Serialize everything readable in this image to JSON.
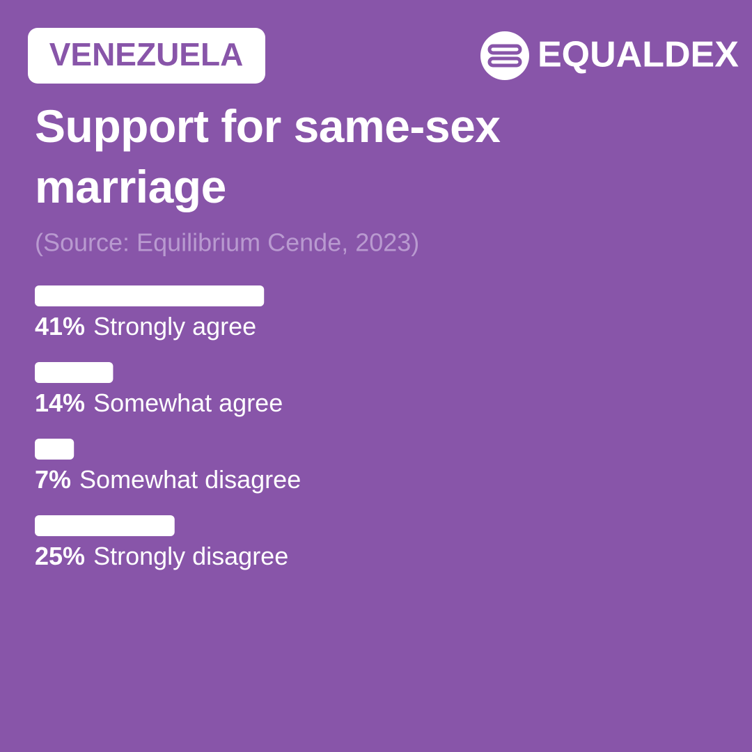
{
  "chart_data": {
    "type": "hbar",
    "badge": "VENEZUELA",
    "brand": "EQUALDEX",
    "title": "Support for same-sex marriage",
    "subtitle": "(Source: Equilibrium Cende, 2023)",
    "categories": [
      "Strongly agree",
      "Somewhat agree",
      "Somewhat disagree",
      "Strongly disagree"
    ],
    "values": [
      41,
      14,
      7,
      25
    ],
    "value_labels": [
      "41%",
      "14%",
      "7%",
      "25%"
    ],
    "color": "#ffffff",
    "xlim": [
      0,
      100
    ]
  }
}
